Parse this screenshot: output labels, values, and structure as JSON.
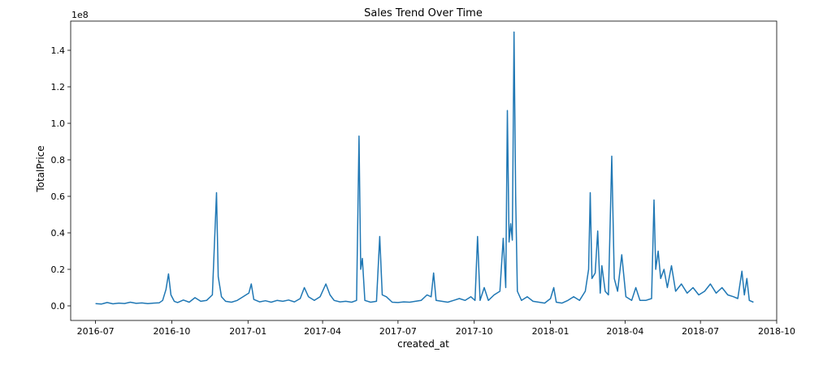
{
  "chart_data": {
    "type": "line",
    "title": "Sales Trend Over Time",
    "xlabel": "created_at",
    "ylabel": "TotalPrice",
    "y_offset_text": "1e8",
    "x_ticks": [
      "2016-07",
      "2016-10",
      "2017-01",
      "2017-04",
      "2017-07",
      "2017-10",
      "2018-01",
      "2018-04",
      "2018-07",
      "2018-10"
    ],
    "y_ticks": [
      "0.0",
      "0.2",
      "0.4",
      "0.6",
      "0.8",
      "1.0",
      "1.2",
      "1.4"
    ],
    "xlim": [
      "2016-06-01",
      "2018-10-01"
    ],
    "ylim": [
      -0.08,
      1.56
    ],
    "y_unit_multiplier": 100000000,
    "grid": false,
    "line_color": "#1f77b4",
    "series": [
      {
        "points": [
          [
            "2016-07-01",
            0.012
          ],
          [
            "2016-07-08",
            0.01
          ],
          [
            "2016-07-15",
            0.018
          ],
          [
            "2016-07-22",
            0.011
          ],
          [
            "2016-07-29",
            0.015
          ],
          [
            "2016-08-05",
            0.013
          ],
          [
            "2016-08-12",
            0.02
          ],
          [
            "2016-08-19",
            0.014
          ],
          [
            "2016-08-26",
            0.016
          ],
          [
            "2016-09-02",
            0.012
          ],
          [
            "2016-09-09",
            0.015
          ],
          [
            "2016-09-16",
            0.017
          ],
          [
            "2016-09-20",
            0.03
          ],
          [
            "2016-09-24",
            0.09
          ],
          [
            "2016-09-27",
            0.175
          ],
          [
            "2016-09-30",
            0.06
          ],
          [
            "2016-10-04",
            0.025
          ],
          [
            "2016-10-08",
            0.018
          ],
          [
            "2016-10-15",
            0.032
          ],
          [
            "2016-10-22",
            0.02
          ],
          [
            "2016-10-29",
            0.045
          ],
          [
            "2016-11-05",
            0.025
          ],
          [
            "2016-11-12",
            0.03
          ],
          [
            "2016-11-19",
            0.06
          ],
          [
            "2016-11-22",
            0.4
          ],
          [
            "2016-11-24",
            0.62
          ],
          [
            "2016-11-26",
            0.16
          ],
          [
            "2016-11-30",
            0.05
          ],
          [
            "2016-12-05",
            0.025
          ],
          [
            "2016-12-12",
            0.02
          ],
          [
            "2016-12-19",
            0.03
          ],
          [
            "2016-12-26",
            0.05
          ],
          [
            "2017-01-02",
            0.07
          ],
          [
            "2017-01-05",
            0.12
          ],
          [
            "2017-01-08",
            0.035
          ],
          [
            "2017-01-15",
            0.022
          ],
          [
            "2017-01-22",
            0.028
          ],
          [
            "2017-01-29",
            0.02
          ],
          [
            "2017-02-05",
            0.03
          ],
          [
            "2017-02-12",
            0.025
          ],
          [
            "2017-02-19",
            0.032
          ],
          [
            "2017-02-26",
            0.022
          ],
          [
            "2017-03-05",
            0.04
          ],
          [
            "2017-03-10",
            0.1
          ],
          [
            "2017-03-15",
            0.05
          ],
          [
            "2017-03-22",
            0.03
          ],
          [
            "2017-03-29",
            0.05
          ],
          [
            "2017-04-05",
            0.12
          ],
          [
            "2017-04-10",
            0.06
          ],
          [
            "2017-04-15",
            0.03
          ],
          [
            "2017-04-22",
            0.022
          ],
          [
            "2017-04-29",
            0.025
          ],
          [
            "2017-05-06",
            0.02
          ],
          [
            "2017-05-12",
            0.03
          ],
          [
            "2017-05-15",
            0.93
          ],
          [
            "2017-05-17",
            0.2
          ],
          [
            "2017-05-19",
            0.26
          ],
          [
            "2017-05-22",
            0.03
          ],
          [
            "2017-05-29",
            0.02
          ],
          [
            "2017-06-05",
            0.025
          ],
          [
            "2017-06-09",
            0.38
          ],
          [
            "2017-06-12",
            0.06
          ],
          [
            "2017-06-17",
            0.05
          ],
          [
            "2017-06-24",
            0.02
          ],
          [
            "2017-07-01",
            0.018
          ],
          [
            "2017-07-08",
            0.022
          ],
          [
            "2017-07-15",
            0.02
          ],
          [
            "2017-07-22",
            0.025
          ],
          [
            "2017-07-29",
            0.03
          ],
          [
            "2017-08-05",
            0.06
          ],
          [
            "2017-08-10",
            0.05
          ],
          [
            "2017-08-13",
            0.18
          ],
          [
            "2017-08-16",
            0.03
          ],
          [
            "2017-08-23",
            0.025
          ],
          [
            "2017-08-30",
            0.02
          ],
          [
            "2017-09-06",
            0.03
          ],
          [
            "2017-09-13",
            0.04
          ],
          [
            "2017-09-20",
            0.03
          ],
          [
            "2017-09-27",
            0.05
          ],
          [
            "2017-10-02",
            0.03
          ],
          [
            "2017-10-05",
            0.38
          ],
          [
            "2017-10-08",
            0.03
          ],
          [
            "2017-10-13",
            0.1
          ],
          [
            "2017-10-18",
            0.03
          ],
          [
            "2017-10-25",
            0.06
          ],
          [
            "2017-11-01",
            0.08
          ],
          [
            "2017-11-05",
            0.37
          ],
          [
            "2017-11-08",
            0.1
          ],
          [
            "2017-11-10",
            1.07
          ],
          [
            "2017-11-12",
            0.35
          ],
          [
            "2017-11-14",
            0.45
          ],
          [
            "2017-11-16",
            0.36
          ],
          [
            "2017-11-18",
            1.5
          ],
          [
            "2017-11-20",
            0.6
          ],
          [
            "2017-11-22",
            0.08
          ],
          [
            "2017-11-27",
            0.03
          ],
          [
            "2017-12-04",
            0.05
          ],
          [
            "2017-12-11",
            0.025
          ],
          [
            "2017-12-18",
            0.02
          ],
          [
            "2017-12-25",
            0.015
          ],
          [
            "2018-01-01",
            0.04
          ],
          [
            "2018-01-05",
            0.1
          ],
          [
            "2018-01-08",
            0.02
          ],
          [
            "2018-01-15",
            0.015
          ],
          [
            "2018-01-22",
            0.03
          ],
          [
            "2018-01-29",
            0.05
          ],
          [
            "2018-02-05",
            0.03
          ],
          [
            "2018-02-12",
            0.08
          ],
          [
            "2018-02-16",
            0.2
          ],
          [
            "2018-02-18",
            0.62
          ],
          [
            "2018-02-20",
            0.15
          ],
          [
            "2018-02-24",
            0.18
          ],
          [
            "2018-02-27",
            0.41
          ],
          [
            "2018-03-02",
            0.07
          ],
          [
            "2018-03-04",
            0.22
          ],
          [
            "2018-03-08",
            0.08
          ],
          [
            "2018-03-12",
            0.06
          ],
          [
            "2018-03-16",
            0.82
          ],
          [
            "2018-03-19",
            0.15
          ],
          [
            "2018-03-23",
            0.08
          ],
          [
            "2018-03-28",
            0.28
          ],
          [
            "2018-04-02",
            0.05
          ],
          [
            "2018-04-09",
            0.03
          ],
          [
            "2018-04-14",
            0.1
          ],
          [
            "2018-04-19",
            0.03
          ],
          [
            "2018-04-26",
            0.03
          ],
          [
            "2018-05-03",
            0.04
          ],
          [
            "2018-05-06",
            0.58
          ],
          [
            "2018-05-08",
            0.2
          ],
          [
            "2018-05-11",
            0.3
          ],
          [
            "2018-05-14",
            0.15
          ],
          [
            "2018-05-18",
            0.2
          ],
          [
            "2018-05-22",
            0.1
          ],
          [
            "2018-05-27",
            0.22
          ],
          [
            "2018-06-01",
            0.08
          ],
          [
            "2018-06-08",
            0.12
          ],
          [
            "2018-06-15",
            0.07
          ],
          [
            "2018-06-22",
            0.1
          ],
          [
            "2018-06-29",
            0.06
          ],
          [
            "2018-07-06",
            0.08
          ],
          [
            "2018-07-13",
            0.12
          ],
          [
            "2018-07-20",
            0.07
          ],
          [
            "2018-07-27",
            0.1
          ],
          [
            "2018-08-03",
            0.06
          ],
          [
            "2018-08-10",
            0.05
          ],
          [
            "2018-08-15",
            0.04
          ],
          [
            "2018-08-20",
            0.19
          ],
          [
            "2018-08-23",
            0.06
          ],
          [
            "2018-08-26",
            0.15
          ],
          [
            "2018-08-29",
            0.03
          ],
          [
            "2018-09-03",
            0.02
          ]
        ]
      }
    ]
  }
}
